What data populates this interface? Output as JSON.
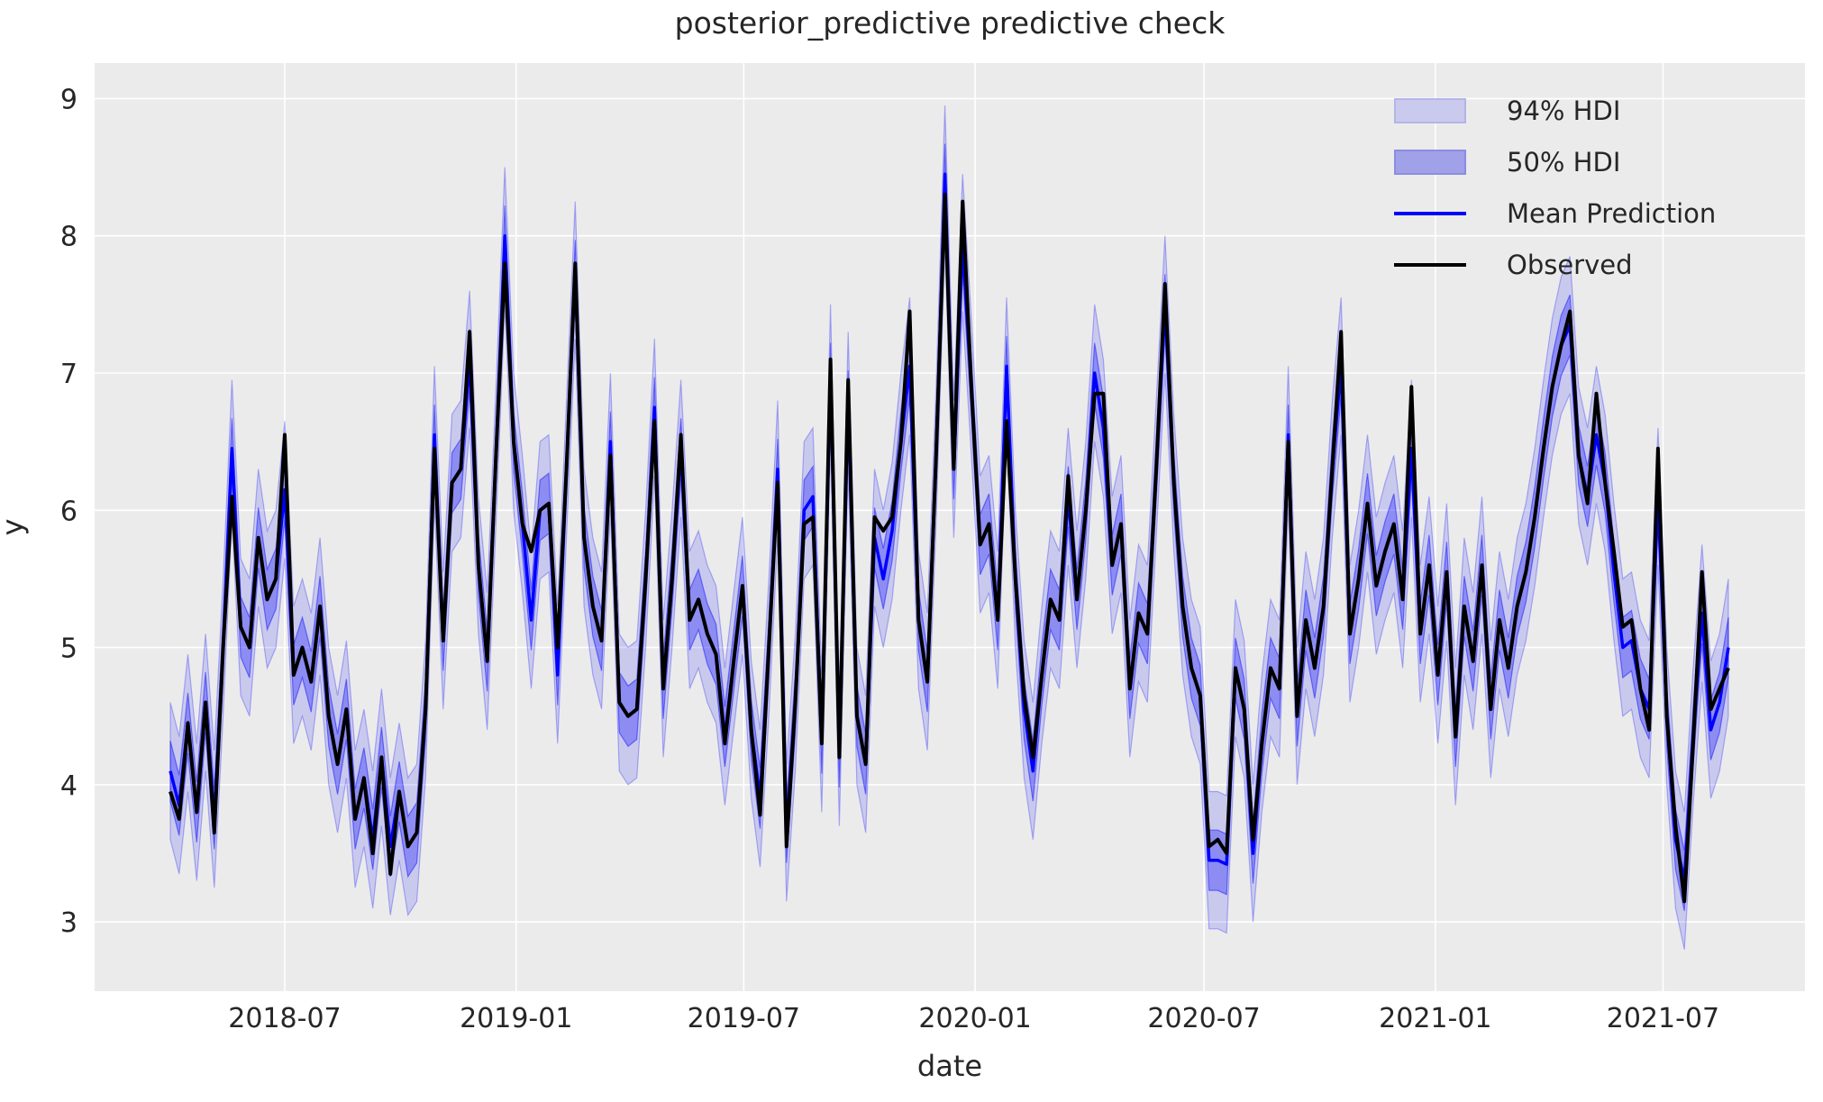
{
  "figure": {
    "title": "posterior_predictive predictive check",
    "xlabel": "date",
    "ylabel": "y"
  },
  "legend": {
    "items": [
      {
        "label": "94% HDI",
        "type": "patch",
        "fill": "#cacaee",
        "edge": "#b4b4e6"
      },
      {
        "label": "50% HDI",
        "type": "patch",
        "fill": "#a1a1ea",
        "edge": "#8c8ce2"
      },
      {
        "label": "Mean Prediction",
        "type": "line",
        "color": "#0000ff"
      },
      {
        "label": "Observed",
        "type": "line",
        "color": "#000000"
      }
    ]
  },
  "colors": {
    "axes_background": "#ebebeb",
    "grid": "#ffffff",
    "text": "#262626",
    "observed_line": "#000000",
    "mean_line": "#0000ff",
    "hdi94_fill": "rgba(0,0,255,0.14)",
    "hdi50_fill": "rgba(0,0,255,0.30)"
  },
  "chart_data": {
    "type": "line",
    "title": "posterior_predictive predictive check",
    "xlabel": "date",
    "ylabel": "y",
    "grid": true,
    "legend_position": "upper right",
    "x_start_date": "2018-04-01",
    "x_step_days": 7,
    "n_points": 178,
    "x_end_date": "2021-08-22",
    "ylim": [
      2.5,
      9.26
    ],
    "y_ticks": [
      3,
      4,
      5,
      6,
      7,
      8,
      9
    ],
    "x_ticks": [
      {
        "label": "2018-07",
        "day_offset": 91
      },
      {
        "label": "2019-01",
        "day_offset": 275
      },
      {
        "label": "2019-07",
        "day_offset": 456
      },
      {
        "label": "2020-01",
        "day_offset": 640
      },
      {
        "label": "2020-07",
        "day_offset": 822
      },
      {
        "label": "2021-01",
        "day_offset": 1006
      },
      {
        "label": "2021-07",
        "day_offset": 1187
      }
    ],
    "series": [
      {
        "name": "Observed",
        "color": "#000000",
        "values": [
          3.95,
          3.75,
          4.45,
          3.8,
          4.6,
          3.65,
          5.0,
          6.1,
          5.15,
          5.0,
          5.8,
          5.35,
          5.5,
          6.55,
          4.8,
          5.0,
          4.75,
          5.3,
          4.5,
          4.15,
          4.55,
          3.75,
          4.05,
          3.5,
          4.2,
          3.35,
          3.95,
          3.55,
          3.65,
          4.55,
          6.45,
          5.05,
          6.2,
          6.3,
          7.3,
          5.6,
          4.9,
          6.4,
          7.8,
          6.5,
          5.9,
          5.7,
          6.0,
          6.05,
          5.0,
          6.3,
          7.8,
          5.8,
          5.3,
          5.05,
          6.4,
          4.6,
          4.5,
          4.55,
          5.5,
          6.65,
          4.7,
          5.5,
          6.55,
          5.2,
          5.35,
          5.1,
          4.95,
          4.3,
          4.9,
          5.45,
          4.4,
          3.78,
          5.0,
          6.2,
          3.55,
          4.6,
          5.9,
          5.95,
          4.3,
          7.1,
          4.2,
          6.95,
          4.5,
          4.15,
          5.95,
          5.85,
          5.95,
          6.5,
          7.45,
          5.2,
          4.75,
          6.4,
          8.3,
          6.3,
          8.25,
          6.9,
          5.75,
          5.9,
          5.2,
          6.65,
          5.5,
          4.65,
          4.2,
          4.8,
          5.35,
          5.2,
          6.25,
          5.35,
          6.0,
          6.85,
          6.85,
          5.6,
          5.9,
          4.7,
          5.25,
          5.1,
          6.3,
          7.65,
          6.2,
          5.3,
          4.85,
          4.65,
          3.55,
          3.6,
          3.5,
          4.85,
          4.55,
          3.6,
          4.3,
          4.85,
          4.7,
          6.5,
          4.5,
          5.2,
          4.85,
          5.3,
          6.3,
          7.3,
          5.1,
          5.5,
          6.05,
          5.45,
          5.7,
          5.9,
          5.35,
          6.9,
          5.1,
          5.6,
          4.8,
          5.55,
          4.35,
          5.3,
          4.9,
          5.6,
          4.55,
          5.2,
          4.85,
          5.3,
          5.55,
          5.95,
          6.45,
          6.9,
          7.2,
          7.45,
          6.4,
          6.05,
          6.85,
          6.2,
          5.7,
          5.15,
          5.2,
          4.7,
          4.4,
          6.45,
          4.5,
          3.7,
          3.15,
          4.3,
          5.55,
          4.55,
          4.7,
          4.85
        ]
      },
      {
        "name": "Mean Prediction",
        "color": "#0000ff",
        "values": [
          4.1,
          3.85,
          4.45,
          3.8,
          4.6,
          3.75,
          5.0,
          6.45,
          5.15,
          5.0,
          5.8,
          5.35,
          5.5,
          6.15,
          4.8,
          5.0,
          4.75,
          5.3,
          4.5,
          4.15,
          4.55,
          3.75,
          4.05,
          3.6,
          4.2,
          3.55,
          3.95,
          3.55,
          3.65,
          4.55,
          6.55,
          5.05,
          6.2,
          6.3,
          7.1,
          5.6,
          4.9,
          6.4,
          8.0,
          6.5,
          5.9,
          5.2,
          6.0,
          6.05,
          4.8,
          6.3,
          7.75,
          5.8,
          5.3,
          5.05,
          6.5,
          4.6,
          4.5,
          4.55,
          5.5,
          6.75,
          4.7,
          5.5,
          6.45,
          5.2,
          5.35,
          5.1,
          4.95,
          4.35,
          4.9,
          5.45,
          4.4,
          3.9,
          5.0,
          6.3,
          3.65,
          4.6,
          6.0,
          6.1,
          4.3,
          7.0,
          4.2,
          6.8,
          4.5,
          4.15,
          5.8,
          5.5,
          5.85,
          6.5,
          7.05,
          5.2,
          4.75,
          6.4,
          8.45,
          6.3,
          7.95,
          6.9,
          5.75,
          5.9,
          5.2,
          7.05,
          5.5,
          4.55,
          4.1,
          4.8,
          5.35,
          5.2,
          6.1,
          5.35,
          6.0,
          7.0,
          6.6,
          5.6,
          5.9,
          4.7,
          5.25,
          5.1,
          6.3,
          7.5,
          6.2,
          5.3,
          4.85,
          4.65,
          3.45,
          3.45,
          3.42,
          4.85,
          4.55,
          3.5,
          4.3,
          4.85,
          4.7,
          6.55,
          4.5,
          5.2,
          4.85,
          5.3,
          6.3,
          7.05,
          5.1,
          5.5,
          6.05,
          5.45,
          5.7,
          5.9,
          5.35,
          6.45,
          5.1,
          5.6,
          4.8,
          5.55,
          4.35,
          5.3,
          4.9,
          5.6,
          4.55,
          5.2,
          4.85,
          5.3,
          5.55,
          5.95,
          6.45,
          6.9,
          7.2,
          7.35,
          6.4,
          6.1,
          6.55,
          6.2,
          5.55,
          5.0,
          5.05,
          4.7,
          4.55,
          6.1,
          4.5,
          3.6,
          3.3,
          4.35,
          5.25,
          4.4,
          4.6,
          5.0
        ]
      }
    ],
    "bands": [
      {
        "name": "94% HDI",
        "around": "Mean Prediction",
        "halfwidth": 0.5,
        "fill": "rgba(0,0,255,0.14)",
        "edge": "rgba(0,0,255,0.28)"
      },
      {
        "name": "50% HDI",
        "around": "Mean Prediction",
        "halfwidth": 0.22,
        "fill": "rgba(0,0,255,0.30)",
        "edge": "rgba(0,0,255,0.45)"
      }
    ]
  }
}
